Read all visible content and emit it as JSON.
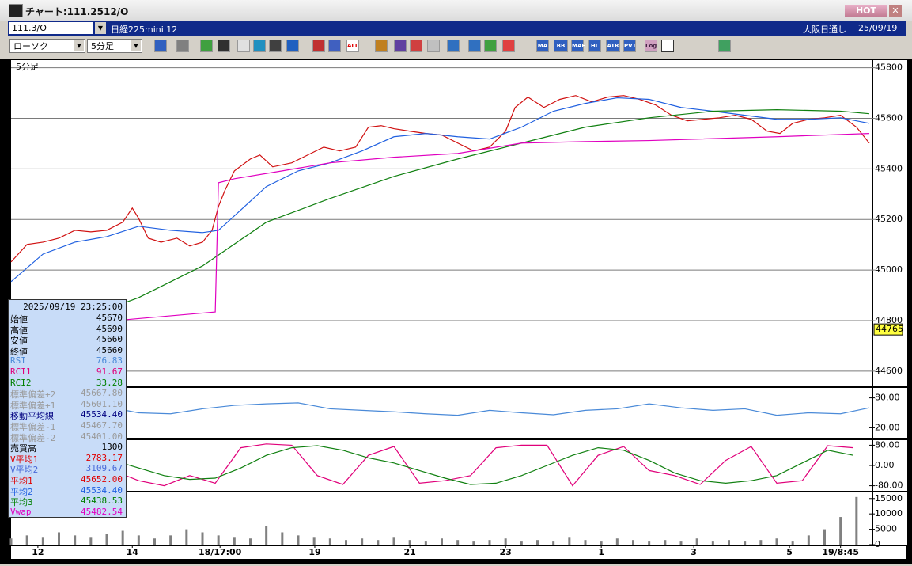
{
  "window": {
    "title": "チャート:111.2512/O",
    "hot_button": "HOT"
  },
  "header": {
    "symbol": "111.3/O",
    "name": "日経225mini 12",
    "session": "大阪日通し",
    "date": "25/09/19"
  },
  "toolbar": {
    "chart_type": "ローソク",
    "period": "5分足",
    "buttons": [
      "ALL",
      "MA",
      "BB",
      "MAE",
      "HL",
      "ATR",
      "PVT",
      "Log"
    ]
  },
  "info_panel": {
    "datetime": "2025/09/19 23:25:00",
    "rows": [
      {
        "label": "始値",
        "value": "45670",
        "color": "#000000"
      },
      {
        "label": "高値",
        "value": "45690",
        "color": "#000000"
      },
      {
        "label": "安値",
        "value": "45660",
        "color": "#000000"
      },
      {
        "label": "終値",
        "value": "45660",
        "color": "#000000"
      },
      {
        "label": "RSI",
        "value": "76.83",
        "color": "#4a8ad8"
      },
      {
        "label": "RCI1",
        "value": "91.67",
        "color": "#e0007a"
      },
      {
        "label": "RCI2",
        "value": "33.28",
        "color": "#008000"
      },
      {
        "label": "標準偏差+2",
        "value": "45667.80",
        "color": "#9a9a9a"
      },
      {
        "label": "標準偏差+1",
        "value": "45601.10",
        "color": "#9a9a9a"
      },
      {
        "label": "移動平均線",
        "value": "45534.40",
        "color": "#000080"
      },
      {
        "label": "標準偏差-1",
        "value": "45467.70",
        "color": "#9a9a9a"
      },
      {
        "label": "標準偏差-2",
        "value": "45401.00",
        "color": "#9a9a9a"
      },
      {
        "label": "売買高",
        "value": "1300",
        "color": "#000000"
      },
      {
        "label": "V平均1",
        "value": "2783.17",
        "color": "#e00000"
      },
      {
        "label": "V平均2",
        "value": "3109.67",
        "color": "#4a6ad8"
      },
      {
        "label": "平均1",
        "value": "45652.00",
        "color": "#e00000"
      },
      {
        "label": "平均2",
        "value": "45534.40",
        "color": "#2060e0"
      },
      {
        "label": "平均3",
        "value": "45438.53",
        "color": "#008000"
      },
      {
        "label": "Vwap",
        "value": "45482.54",
        "color": "#e000c0"
      }
    ]
  },
  "chart_data": [
    {
      "type": "line",
      "subtitle": "5分足",
      "xlim": [
        0,
        270
      ],
      "ylim": [
        44540,
        45830
      ],
      "yticks": [
        44600,
        44800,
        45000,
        45200,
        45400,
        45600,
        45800
      ],
      "grid": true,
      "price_marker": 44765,
      "series": [
        {
          "color": "#d01010",
          "x": [
            0,
            5,
            10,
            15,
            20,
            25,
            30,
            35,
            38,
            40,
            43,
            47,
            52,
            56,
            60,
            63,
            65,
            67,
            70,
            75,
            78,
            82,
            88,
            93,
            98,
            103,
            108,
            112,
            116,
            120,
            125,
            130,
            135,
            140,
            145,
            150,
            155,
            158,
            162,
            167,
            172,
            177,
            182,
            187,
            192,
            197,
            202,
            207,
            212,
            217,
            222,
            227,
            232,
            237,
            241,
            245,
            250,
            255,
            260,
            265,
            269
          ],
          "values": [
            45032,
            45101,
            45110,
            45126,
            45157,
            45151,
            45157,
            45189,
            45245,
            45204,
            45126,
            45110,
            45126,
            45095,
            45110,
            45157,
            45251,
            45314,
            45392,
            45439,
            45455,
            45408,
            45424,
            45455,
            45486,
            45471,
            45486,
            45565,
            45571,
            45559,
            45549,
            45540,
            45534,
            45502,
            45471,
            45486,
            45549,
            45643,
            45684,
            45643,
            45675,
            45690,
            45665,
            45684,
            45690,
            45675,
            45653,
            45612,
            45590,
            45596,
            45602,
            45612,
            45596,
            45549,
            45540,
            45580,
            45596,
            45602,
            45612,
            45565,
            45502
          ]
        },
        {
          "color": "#2060e0",
          "x": [
            0,
            10,
            20,
            30,
            40,
            50,
            60,
            65,
            70,
            80,
            90,
            100,
            110,
            120,
            130,
            140,
            150,
            160,
            170,
            180,
            190,
            200,
            210,
            220,
            230,
            240,
            250,
            260,
            269
          ],
          "values": [
            44954,
            45063,
            45110,
            45132,
            45173,
            45157,
            45148,
            45157,
            45214,
            45330,
            45392,
            45424,
            45471,
            45527,
            45540,
            45527,
            45518,
            45565,
            45628,
            45659,
            45681,
            45675,
            45643,
            45628,
            45612,
            45596,
            45596,
            45602,
            45580
          ]
        },
        {
          "color": "#108010",
          "x": [
            0,
            20,
            40,
            60,
            80,
            100,
            120,
            140,
            160,
            180,
            200,
            220,
            240,
            260,
            269
          ],
          "values": [
            44718,
            44797,
            44891,
            45016,
            45189,
            45283,
            45370,
            45439,
            45502,
            45565,
            45602,
            45628,
            45634,
            45628,
            45618
          ]
        },
        {
          "color": "#e000c0",
          "x": [
            0,
            30,
            64,
            65,
            70,
            85,
            100,
            120,
            140,
            160,
            180,
            200,
            240,
            269
          ],
          "values": [
            44765,
            44797,
            44834,
            45345,
            45361,
            45392,
            45424,
            45446,
            45461,
            45502,
            45508,
            45512,
            45527,
            45540
          ]
        }
      ]
    },
    {
      "type": "line",
      "xlim": [
        0,
        270
      ],
      "ylim": [
        0,
        100
      ],
      "yticks": [
        {
          "value": 20,
          "label": "20.00"
        },
        {
          "value": 80,
          "label": "80.00"
        }
      ],
      "series": [
        {
          "color": "#4a8ad8",
          "x": [
            0,
            10,
            20,
            30,
            40,
            50,
            60,
            70,
            80,
            90,
            100,
            110,
            120,
            130,
            140,
            150,
            160,
            170,
            180,
            190,
            200,
            210,
            220,
            230,
            240,
            250,
            260,
            269
          ],
          "values": [
            55,
            60,
            58,
            62,
            50,
            48,
            58,
            65,
            68,
            70,
            58,
            55,
            52,
            48,
            45,
            55,
            50,
            46,
            55,
            58,
            68,
            60,
            55,
            58,
            45,
            50,
            48,
            60
          ]
        }
      ]
    },
    {
      "type": "line",
      "xlim": [
        0,
        270
      ],
      "ylim": [
        -100,
        100
      ],
      "yticks": [
        {
          "value": -80,
          "label": "-80.00"
        },
        {
          "value": 0,
          "label": "0.00"
        },
        {
          "value": 80,
          "label": "80.00"
        }
      ],
      "series": [
        {
          "color": "#e0007a",
          "x": [
            0,
            8,
            16,
            24,
            32,
            40,
            48,
            56,
            64,
            72,
            80,
            88,
            96,
            104,
            112,
            120,
            128,
            136,
            144,
            152,
            160,
            168,
            176,
            184,
            192,
            200,
            208,
            216,
            224,
            232,
            240,
            248,
            256,
            264
          ],
          "values": [
            80,
            75,
            60,
            40,
            -20,
            -60,
            -80,
            -40,
            -70,
            70,
            85,
            80,
            -40,
            -75,
            40,
            75,
            -70,
            -60,
            -40,
            70,
            80,
            80,
            -80,
            40,
            75,
            -20,
            -40,
            -75,
            20,
            75,
            -70,
            -60,
            78,
            70
          ]
        },
        {
          "color": "#108010",
          "x": [
            0,
            8,
            16,
            24,
            32,
            40,
            48,
            56,
            64,
            72,
            80,
            88,
            96,
            104,
            112,
            120,
            128,
            136,
            144,
            152,
            160,
            168,
            176,
            184,
            192,
            200,
            208,
            216,
            224,
            232,
            240,
            248,
            256,
            264
          ],
          "values": [
            80,
            78,
            70,
            55,
            20,
            -10,
            -40,
            -55,
            -50,
            -10,
            40,
            70,
            78,
            60,
            30,
            10,
            -20,
            -50,
            -75,
            -70,
            -40,
            0,
            40,
            70,
            60,
            20,
            -30,
            -60,
            -70,
            -60,
            -40,
            10,
            60,
            40
          ]
        }
      ]
    },
    {
      "type": "bar",
      "xlim": [
        0,
        270
      ],
      "ylim": [
        0,
        17000
      ],
      "yticks": [
        0,
        5000,
        10000,
        15000
      ],
      "color": "#808080",
      "xticks": [
        {
          "value": 8.4,
          "label": "12"
        },
        {
          "value": 38,
          "label": "14"
        },
        {
          "value": 65.5,
          "label": "18/17:00"
        },
        {
          "value": 95.2,
          "label": "19"
        },
        {
          "value": 125,
          "label": "21"
        },
        {
          "value": 155,
          "label": "23"
        },
        {
          "value": 185,
          "label": "1"
        },
        {
          "value": 214,
          "label": "3"
        },
        {
          "value": 244,
          "label": "5"
        },
        {
          "value": 260,
          "label": "19/8:45"
        }
      ],
      "x": [
        0,
        5,
        10,
        15,
        20,
        25,
        30,
        35,
        40,
        45,
        50,
        55,
        60,
        65,
        70,
        75,
        80,
        85,
        90,
        95,
        100,
        105,
        110,
        115,
        120,
        125,
        130,
        135,
        140,
        145,
        150,
        155,
        160,
        165,
        170,
        175,
        180,
        185,
        190,
        195,
        200,
        205,
        210,
        215,
        220,
        225,
        230,
        235,
        240,
        245,
        250,
        255,
        260,
        265
      ],
      "values": [
        2000,
        3000,
        2500,
        4000,
        3000,
        2500,
        3500,
        4500,
        3000,
        2000,
        3000,
        5000,
        4000,
        3000,
        2500,
        2000,
        6000,
        4000,
        3000,
        2500,
        2000,
        1500,
        2000,
        1500,
        2500,
        1500,
        1000,
        2000,
        1500,
        1000,
        1500,
        2000,
        1000,
        1500,
        1000,
        2500,
        1500,
        1000,
        2000,
        1500,
        1000,
        1500,
        1000,
        2000,
        1000,
        1500,
        1000,
        1500,
        2000,
        1000,
        3000,
        5000,
        9000,
        15500
      ]
    }
  ]
}
